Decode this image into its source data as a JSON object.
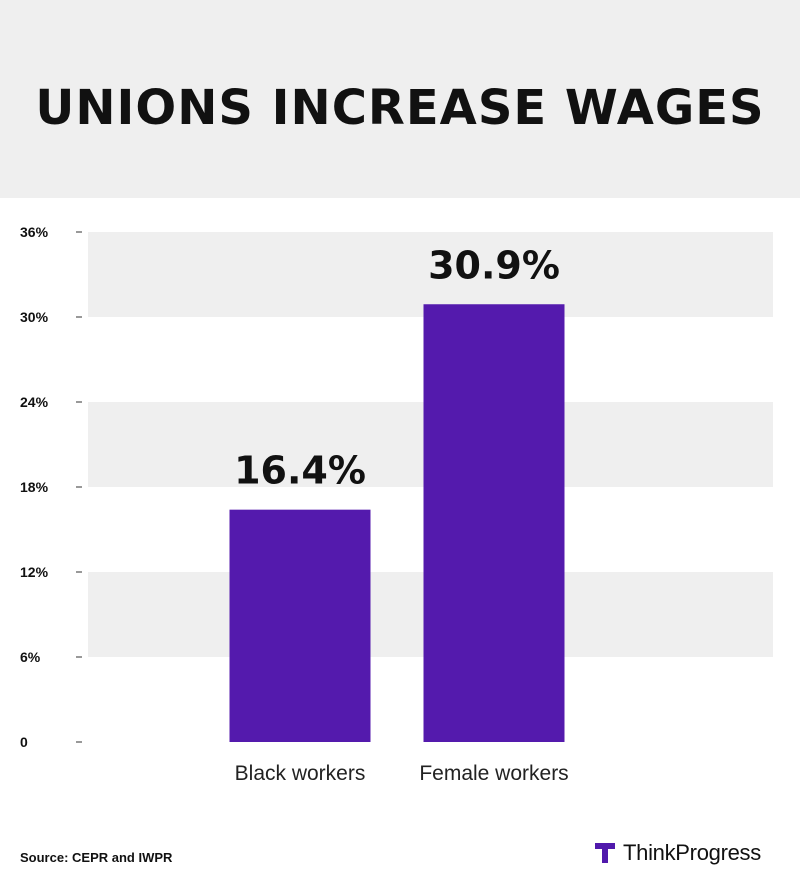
{
  "title": "UNIONS INCREASE WAGES",
  "source": "Source: CEPR and IWPR",
  "brand": {
    "name": "ThinkProgress",
    "accent": "#5019ac"
  },
  "colors": {
    "bar": "#541aad",
    "band": "#efefef",
    "header_bg": "#efefef"
  },
  "chart_data": {
    "type": "bar",
    "categories": [
      "Black workers",
      "Female workers"
    ],
    "values": [
      16.4,
      30.9
    ],
    "data_labels": [
      "16.4%",
      "30.9%"
    ],
    "ylim": [
      0,
      36
    ],
    "yticks": [
      0,
      6,
      12,
      18,
      24,
      30,
      36
    ],
    "ytick_labels": [
      "0",
      "6%",
      "12%",
      "18%",
      "24%",
      "30%",
      "36%"
    ],
    "alternating_bands": true
  }
}
